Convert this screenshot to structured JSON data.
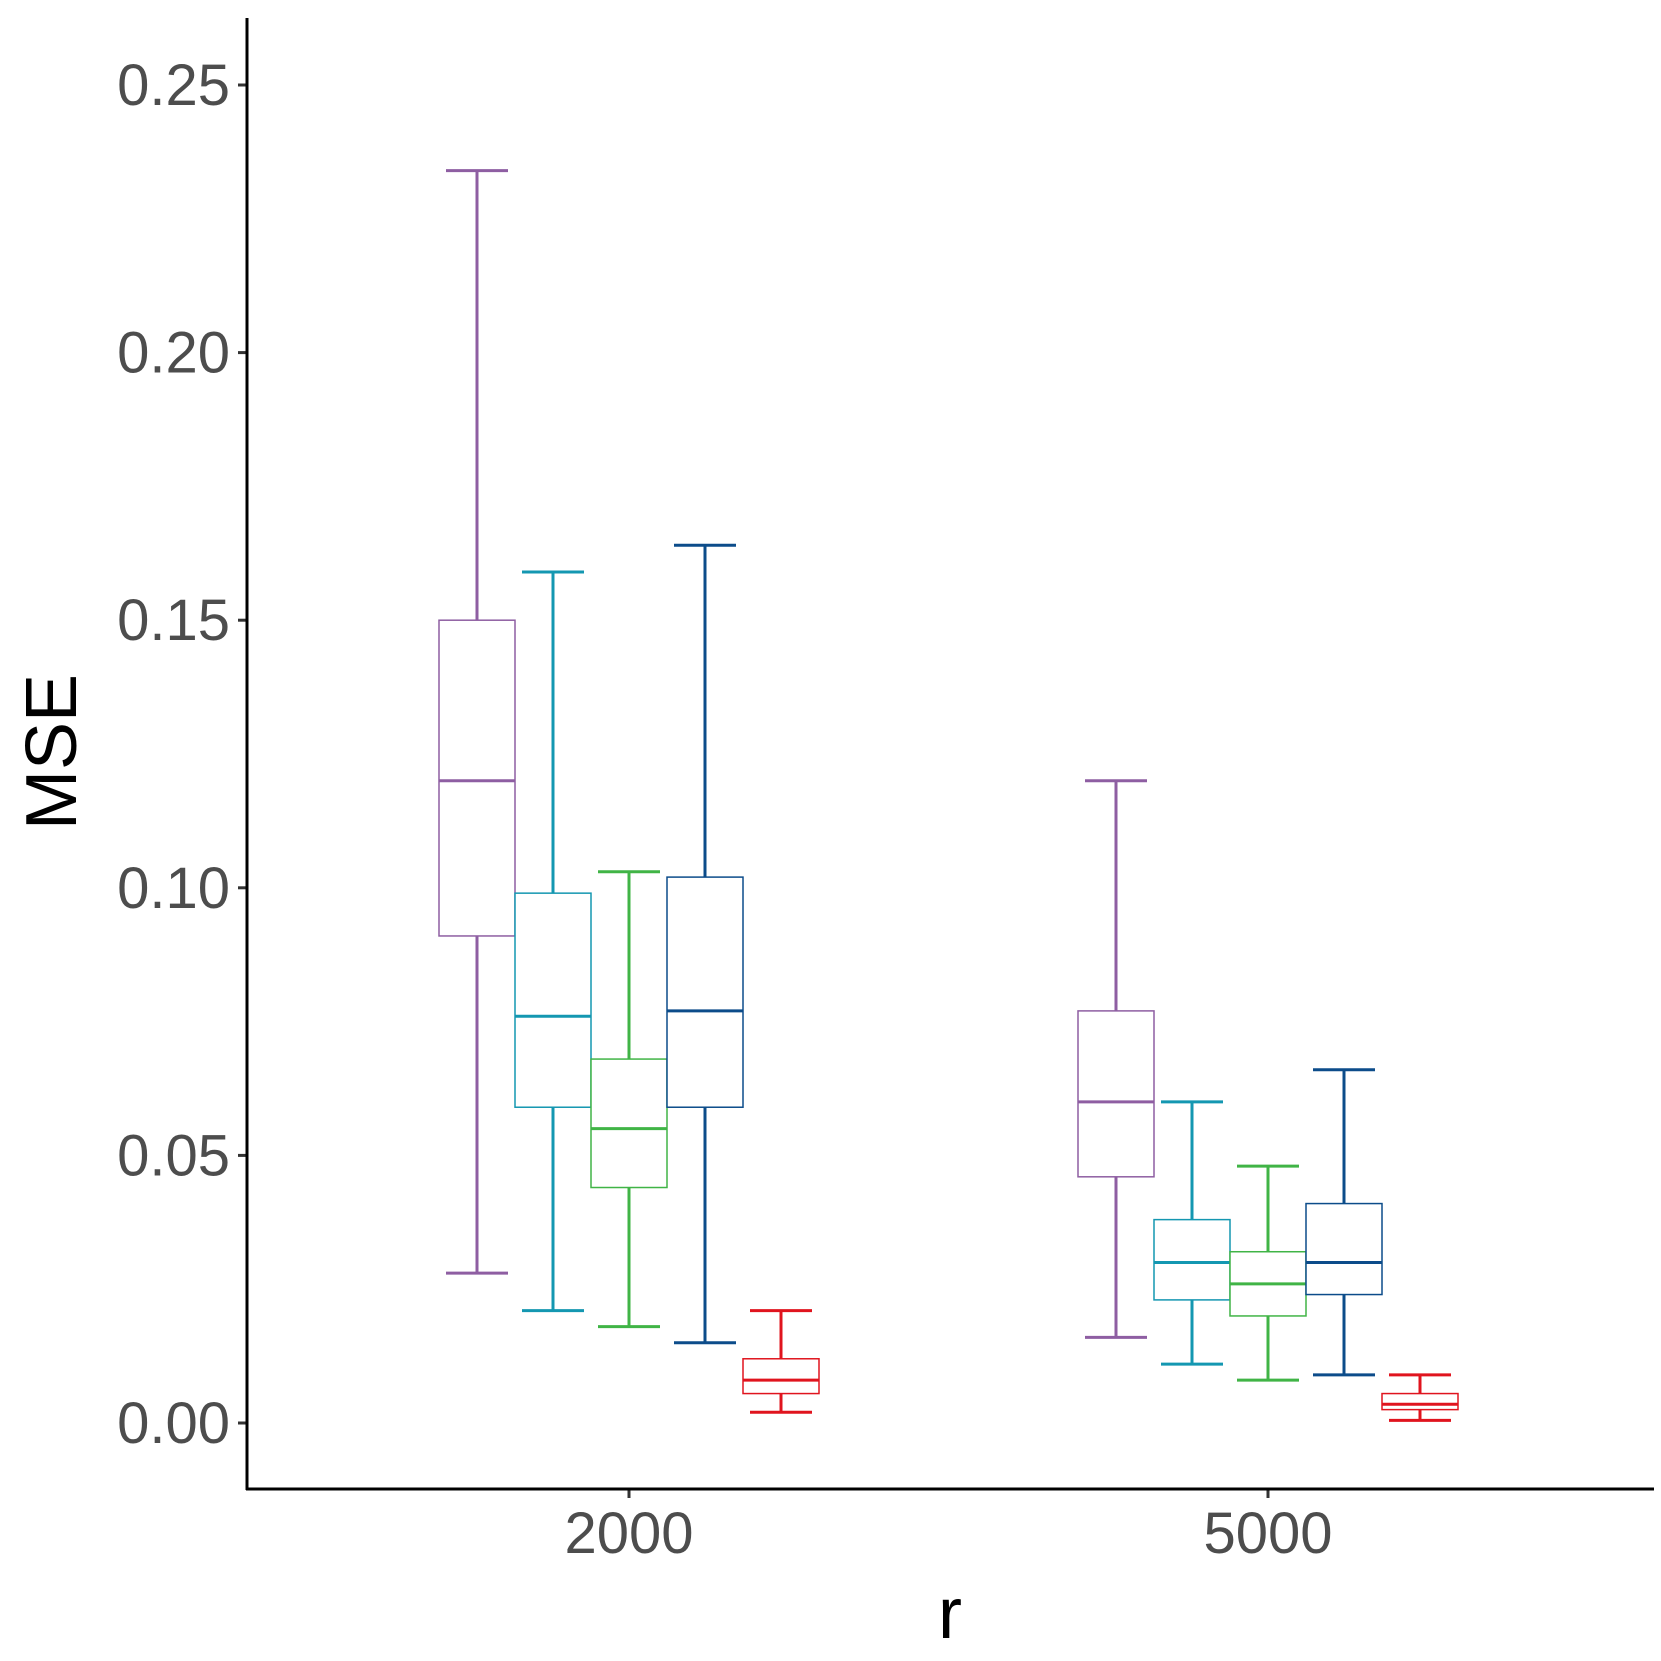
{
  "chart_data": {
    "type": "box",
    "title": "",
    "xlabel": "r",
    "ylabel": "MSE",
    "ylim": [
      -0.012,
      0.262
    ],
    "yticks": [
      "0.00",
      "0.05",
      "0.10",
      "0.15",
      "0.20",
      "0.25"
    ],
    "ytick_values": [
      0,
      0.05,
      0.1,
      0.15,
      0.2,
      0.25
    ],
    "categories": [
      "2000",
      "5000"
    ],
    "grid": false,
    "legend": "none",
    "series": [
      {
        "color": "#8e5ea2",
        "boxes": [
          {
            "min": 0.028,
            "q1": 0.091,
            "median": 0.12,
            "q3": 0.15,
            "max": 0.234
          },
          {
            "min": 0.016,
            "q1": 0.046,
            "median": 0.06,
            "q3": 0.077,
            "max": 0.12
          }
        ]
      },
      {
        "color": "#1497b1",
        "boxes": [
          {
            "min": 0.021,
            "q1": 0.059,
            "median": 0.076,
            "q3": 0.099,
            "max": 0.159
          },
          {
            "min": 0.011,
            "q1": 0.023,
            "median": 0.03,
            "q3": 0.038,
            "max": 0.06
          }
        ]
      },
      {
        "color": "#40b446",
        "boxes": [
          {
            "min": 0.018,
            "q1": 0.044,
            "median": 0.055,
            "q3": 0.068,
            "max": 0.103
          },
          {
            "min": 0.008,
            "q1": 0.02,
            "median": 0.026,
            "q3": 0.032,
            "max": 0.048
          }
        ]
      },
      {
        "color": "#0c4c8a",
        "boxes": [
          {
            "min": 0.015,
            "q1": 0.059,
            "median": 0.077,
            "q3": 0.102,
            "max": 0.164
          },
          {
            "min": 0.009,
            "q1": 0.024,
            "median": 0.03,
            "q3": 0.041,
            "max": 0.066
          }
        ]
      },
      {
        "color": "#e0141e",
        "boxes": [
          {
            "min": 0.002,
            "q1": 0.0055,
            "median": 0.008,
            "q3": 0.012,
            "max": 0.021
          },
          {
            "min": 0.0005,
            "q1": 0.0025,
            "median": 0.0035,
            "q3": 0.0055,
            "max": 0.009
          }
        ]
      }
    ]
  }
}
